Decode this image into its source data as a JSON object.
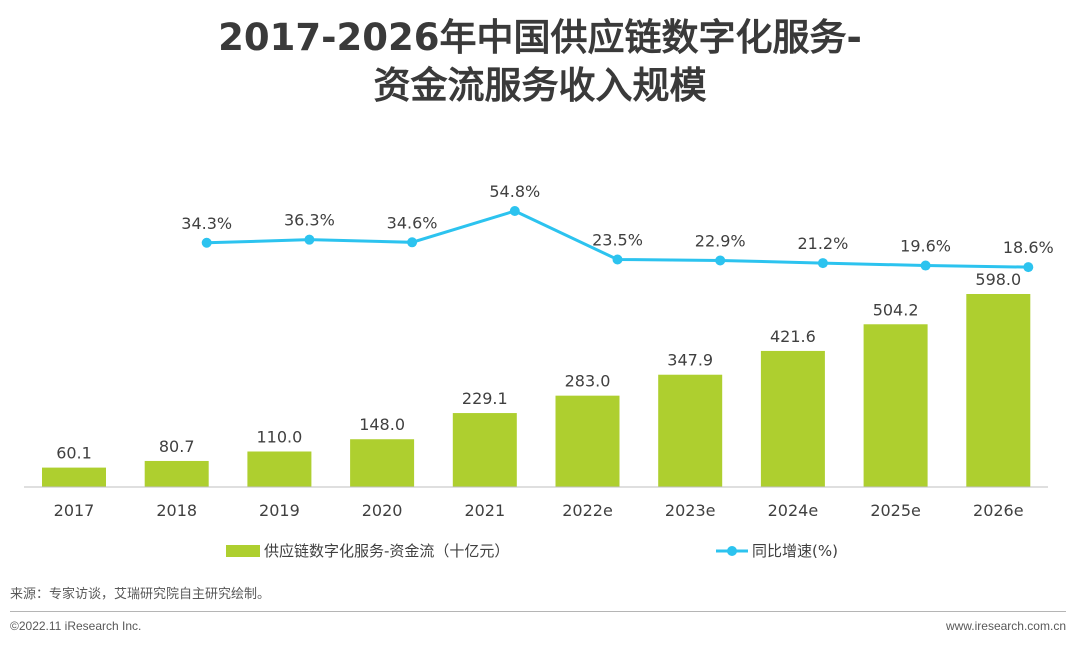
{
  "title": {
    "line1": "2017-2026年中国供应链数字化服务-",
    "line2": "资金流服务收入规模"
  },
  "chart_data": {
    "type": "bar",
    "categories": [
      "2017",
      "2018",
      "2019",
      "2020",
      "2021",
      "2022e",
      "2023e",
      "2024e",
      "2025e",
      "2026e"
    ],
    "series": [
      {
        "name": "供应链数字化服务-资金流（十亿元）",
        "type": "bar",
        "color": "#aecf2f",
        "values": [
          60.1,
          80.7,
          110.0,
          148.0,
          229.1,
          283.0,
          347.9,
          421.6,
          504.2,
          598.0
        ],
        "labels": [
          "60.1",
          "80.7",
          "110.0",
          "148.0",
          "229.1",
          "283.0",
          "347.9",
          "421.6",
          "504.2",
          "598.0"
        ]
      },
      {
        "name": "同比增速(%)",
        "type": "line",
        "color": "#2cc3ef",
        "values": [
          null,
          34.3,
          36.3,
          34.6,
          54.8,
          23.5,
          22.9,
          21.2,
          19.6,
          18.6
        ],
        "labels": [
          "",
          "34.3%",
          "36.3%",
          "34.6%",
          "54.8%",
          "23.5%",
          "22.9%",
          "21.2%",
          "19.6%",
          "18.6%"
        ]
      }
    ],
    "bar_ylim": [
      0,
      620
    ],
    "line_ylim": [
      0,
      60
    ],
    "legend_position": "bottom",
    "grid": false
  },
  "footer": {
    "source": "来源：专家访谈，艾瑞研究院自主研究绘制。",
    "copyright": "©2022.11 iResearch Inc.",
    "website": "www.iresearch.com.cn"
  }
}
